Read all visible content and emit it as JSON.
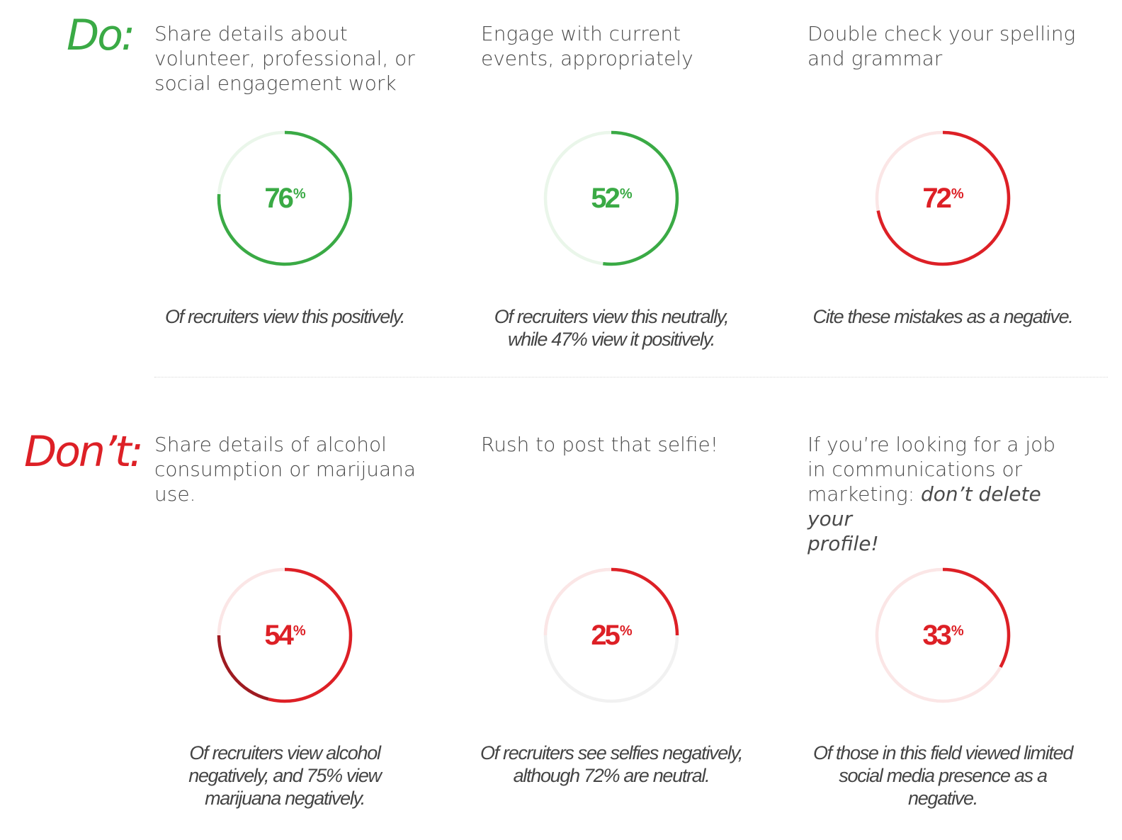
{
  "colors": {
    "green": "#3aaa45",
    "red": "#dd2026",
    "dark_red": "#9e1b21",
    "green_track": "#eaf6ea",
    "red_track": "#fbe6e6",
    "gray_track": "#f1f1f1"
  },
  "sections": {
    "do": {
      "label": "Do:"
    },
    "dont": {
      "label": "Don’t:"
    }
  },
  "chart_data": [
    {
      "type": "pie",
      "section": "Do:",
      "heading": "Share details about\nvolunteer, professional, or\nsocial engagement work",
      "values": [
        76
      ],
      "display": "76",
      "unit": "%",
      "color": "#3aaa45",
      "caption": "Of recruiters view this positively."
    },
    {
      "type": "pie",
      "section": "Do:",
      "heading": "Engage with current\nevents, appropriately",
      "values": [
        52
      ],
      "display": "52",
      "unit": "%",
      "color": "#3aaa45",
      "caption": "Of recruiters view this neutrally,\nwhile 47% view it positively."
    },
    {
      "type": "pie",
      "section": "Do:",
      "heading": "Double check your spelling\nand grammar",
      "values": [
        72
      ],
      "display": "72",
      "unit": "%",
      "color": "#dd2026",
      "caption": "Cite these mistakes as a negative."
    },
    {
      "type": "pie",
      "section": "Don’t:",
      "heading": "Share  details of alcohol\nconsumption or marijuana\nuse.",
      "values": [
        54,
        75
      ],
      "display": "54",
      "unit": "%",
      "color": "#dd2026",
      "caption": "Of recruiters  view alcohol\nnegatively, and 75% view\nmarijuana negatively."
    },
    {
      "type": "pie",
      "section": "Don’t:",
      "heading": "Rush to post that selfie!",
      "values": [
        25
      ],
      "display": "25",
      "unit": "%",
      "color": "#dd2026",
      "caption": "Of recruiters see selfies negatively,\nalthough 72% are neutral."
    },
    {
      "type": "pie",
      "section": "Don’t:",
      "heading": "If you’re looking for a job\nin communications or\nmarketing: ",
      "heading_emphasis": "don’t delete your\nprofile!",
      "values": [
        33
      ],
      "display": "33",
      "unit": "%",
      "color": "#dd2026",
      "caption": "Of those in this field viewed limited\nsocial media presence as a negative."
    }
  ]
}
